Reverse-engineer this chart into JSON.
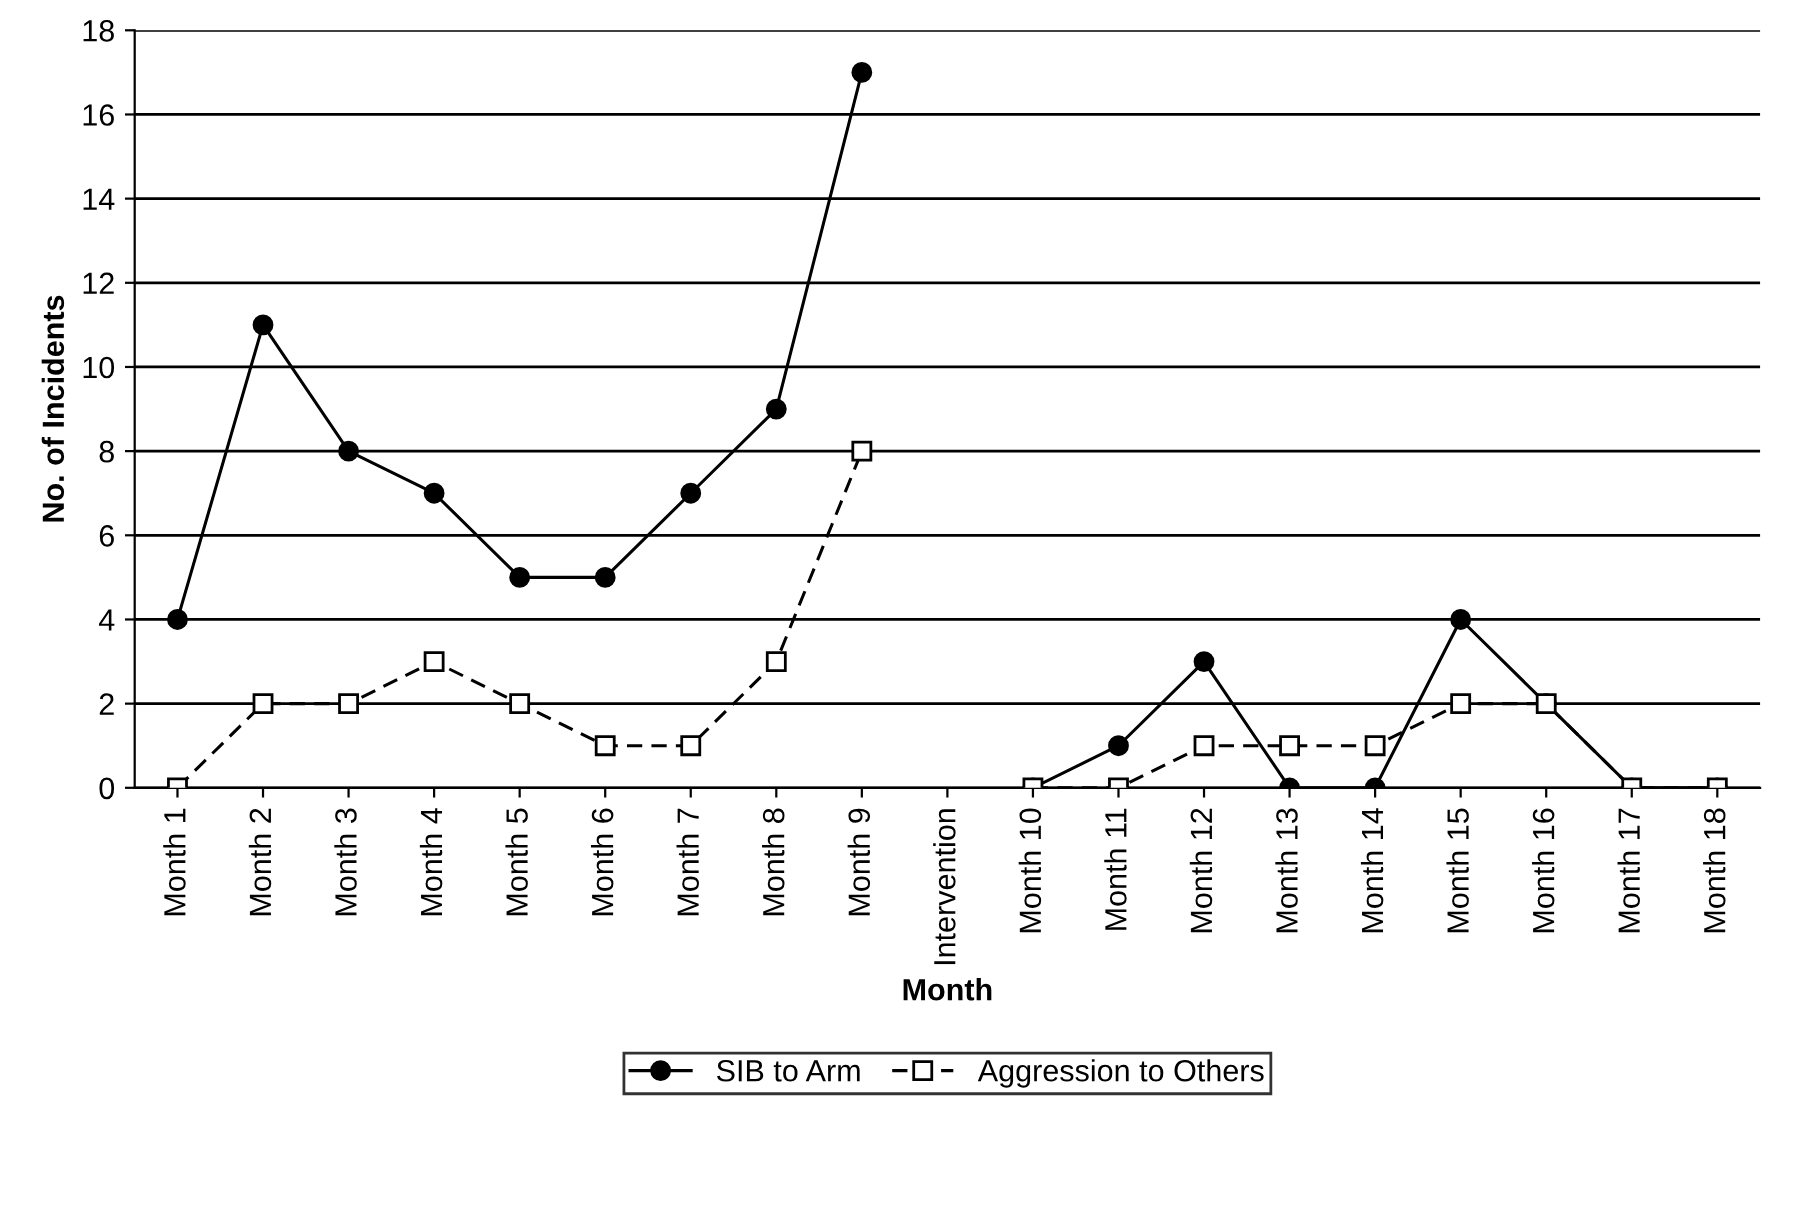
{
  "chart_data": {
    "type": "line",
    "xlabel": "Month",
    "ylabel": "No. of Incidents",
    "categories": [
      "Month 1",
      "Month 2",
      "Month 3",
      "Month 4",
      "Month 5",
      "Month 6",
      "Month 7",
      "Month 8",
      "Month 9",
      "Intervention",
      "Month 10",
      "Month 11",
      "Month 12",
      "Month 13",
      "Month 14",
      "Month 15",
      "Month 16",
      "Month 17",
      "Month 18"
    ],
    "series": [
      {
        "name": "SIB to Arm",
        "color": "#000000",
        "marker": "circle",
        "line_style": "solid",
        "values": [
          4,
          11,
          8,
          7,
          5,
          5,
          7,
          9,
          17,
          null,
          0,
          1,
          3,
          0,
          0,
          4,
          2,
          0,
          0
        ]
      },
      {
        "name": "Aggression to Others",
        "color": "#000000",
        "marker": "square",
        "line_style": "dashed",
        "values": [
          0,
          2,
          2,
          3,
          2,
          1,
          1,
          3,
          8,
          null,
          0,
          0,
          1,
          1,
          1,
          2,
          2,
          0,
          0
        ]
      }
    ],
    "ylim": [
      0,
      18
    ],
    "yticks": [
      0,
      2,
      4,
      6,
      8,
      10,
      12,
      14,
      16,
      18
    ],
    "grid": "y",
    "legend": "bottom"
  }
}
